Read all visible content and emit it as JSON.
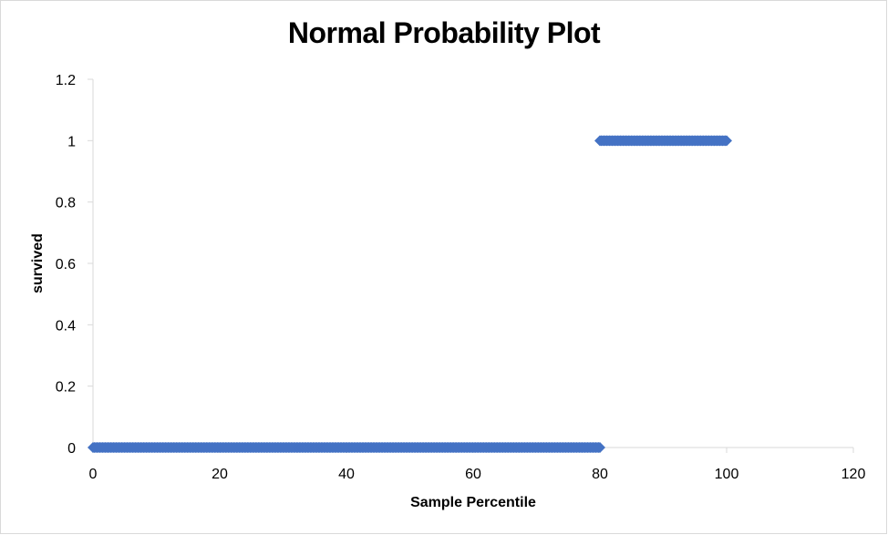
{
  "chart_data": {
    "type": "scatter",
    "title": "Normal Probability Plot",
    "xlabel": "Sample Percentile",
    "ylabel": "survived",
    "xlim": [
      0,
      120
    ],
    "ylim": [
      0,
      1.2
    ],
    "x_ticks": [
      "0",
      "20",
      "40",
      "60",
      "80",
      "100",
      "120"
    ],
    "y_ticks": [
      "0",
      "0.2",
      "0.4",
      "0.6",
      "0.8",
      "1",
      "1.2"
    ],
    "x_tick_values": [
      0,
      20,
      40,
      60,
      80,
      100,
      120
    ],
    "y_tick_values": [
      0,
      0.2,
      0.4,
      0.6,
      0.8,
      1,
      1.2
    ],
    "grid": false,
    "legend": "none",
    "marker": "diamond",
    "series_color": "#4472c4",
    "series": [
      {
        "segments": [
          {
            "x_start": 0,
            "x_end": 80,
            "y": 0
          },
          {
            "x_start": 80,
            "x_end": 100,
            "y": 1
          }
        ]
      }
    ]
  }
}
